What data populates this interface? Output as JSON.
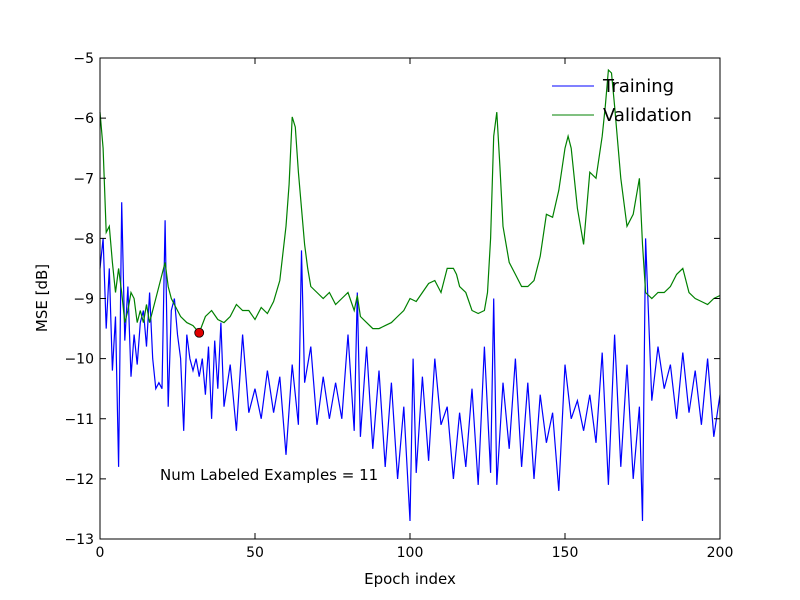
{
  "chart_data": {
    "type": "line",
    "title": "",
    "xlabel": "Epoch index",
    "ylabel": "MSE [dB]",
    "xlim": [
      0,
      200
    ],
    "ylim": [
      -13,
      -5
    ],
    "xticks": [
      "0",
      "50",
      "100",
      "150",
      "200"
    ],
    "yticks": [
      "−5",
      "−6",
      "−7",
      "−8",
      "−9",
      "−10",
      "−11",
      "−12",
      "−13"
    ],
    "grid": false,
    "legend_position": "top-right",
    "annotation": "Num Labeled Examples = 11",
    "marker": {
      "x": 32,
      "y": -9.57,
      "color": "#e00000"
    },
    "series": [
      {
        "name": "Training",
        "color": "#0000ff",
        "x": [
          0,
          1,
          2,
          3,
          4,
          5,
          6,
          7,
          8,
          9,
          10,
          11,
          12,
          13,
          14,
          15,
          16,
          17,
          18,
          19,
          20,
          21,
          22,
          23,
          24,
          25,
          26,
          27,
          28,
          29,
          30,
          31,
          32,
          33,
          34,
          35,
          36,
          37,
          38,
          39,
          40,
          42,
          44,
          46,
          48,
          50,
          52,
          54,
          56,
          58,
          60,
          62,
          64,
          65,
          66,
          68,
          70,
          72,
          74,
          76,
          78,
          80,
          82,
          83,
          84,
          86,
          88,
          90,
          92,
          94,
          96,
          98,
          100,
          101,
          102,
          104,
          106,
          108,
          110,
          112,
          114,
          116,
          118,
          120,
          122,
          124,
          126,
          127,
          128,
          130,
          132,
          134,
          136,
          138,
          140,
          142,
          144,
          146,
          148,
          150,
          152,
          154,
          156,
          158,
          160,
          162,
          164,
          166,
          168,
          170,
          172,
          174,
          175,
          176,
          178,
          180,
          182,
          184,
          186,
          188,
          190,
          192,
          194,
          196,
          198,
          200
        ],
        "values": [
          -8.5,
          -8.0,
          -9.5,
          -8.5,
          -10.2,
          -9.3,
          -11.8,
          -7.4,
          -9.7,
          -8.8,
          -10.3,
          -9.6,
          -10.1,
          -9.4,
          -9.2,
          -9.8,
          -8.9,
          -10.0,
          -10.5,
          -10.4,
          -10.5,
          -7.7,
          -10.8,
          -9.2,
          -9.0,
          -9.6,
          -10.0,
          -11.2,
          -9.6,
          -10.0,
          -10.2,
          -10.0,
          -10.3,
          -10.0,
          -10.6,
          -9.8,
          -11.0,
          -9.7,
          -10.5,
          -9.4,
          -10.8,
          -10.1,
          -11.2,
          -9.6,
          -10.9,
          -10.5,
          -11.0,
          -10.2,
          -10.9,
          -10.3,
          -11.6,
          -10.1,
          -11.1,
          -8.2,
          -10.4,
          -9.8,
          -11.1,
          -10.3,
          -11.0,
          -10.4,
          -11.0,
          -9.6,
          -11.2,
          -8.9,
          -11.3,
          -9.8,
          -11.5,
          -10.2,
          -11.8,
          -10.4,
          -12.0,
          -10.8,
          -12.7,
          -10.0,
          -11.9,
          -10.3,
          -11.7,
          -10.0,
          -11.1,
          -10.8,
          -12.0,
          -10.9,
          -11.8,
          -10.5,
          -12.1,
          -9.8,
          -11.9,
          -9.0,
          -12.1,
          -10.4,
          -11.5,
          -10.0,
          -11.8,
          -10.4,
          -12.0,
          -10.6,
          -11.4,
          -10.9,
          -12.2,
          -10.1,
          -11.0,
          -10.7,
          -11.2,
          -10.6,
          -11.4,
          -9.9,
          -12.1,
          -9.6,
          -11.8,
          -10.1,
          -12.0,
          -10.8,
          -12.7,
          -8.0,
          -10.7,
          -9.8,
          -10.5,
          -10.1,
          -11.0,
          -9.9,
          -10.9,
          -10.2,
          -11.1,
          -10.0,
          -11.3,
          -10.6
        ]
      },
      {
        "name": "Validation",
        "color": "#008000",
        "x": [
          0,
          1,
          2,
          3,
          4,
          5,
          6,
          7,
          8,
          9,
          10,
          11,
          12,
          13,
          14,
          15,
          16,
          17,
          18,
          19,
          20,
          21,
          22,
          23,
          24,
          25,
          26,
          28,
          30,
          32,
          34,
          36,
          38,
          40,
          42,
          44,
          46,
          48,
          50,
          52,
          54,
          56,
          58,
          60,
          61,
          62,
          63,
          64,
          65,
          66,
          67,
          68,
          70,
          72,
          74,
          76,
          78,
          80,
          82,
          83,
          84,
          86,
          88,
          90,
          92,
          94,
          96,
          98,
          100,
          102,
          104,
          106,
          108,
          110,
          112,
          114,
          115,
          116,
          118,
          120,
          122,
          124,
          125,
          126,
          127,
          128,
          129,
          130,
          132,
          134,
          136,
          138,
          140,
          142,
          144,
          146,
          148,
          150,
          151,
          152,
          154,
          156,
          158,
          160,
          162,
          163,
          164,
          165,
          166,
          168,
          170,
          172,
          174,
          175,
          176,
          178,
          180,
          182,
          184,
          186,
          188,
          190,
          192,
          194,
          196,
          198,
          200
        ],
        "values": [
          -5.9,
          -6.5,
          -7.9,
          -7.8,
          -8.4,
          -8.9,
          -8.5,
          -8.9,
          -9.4,
          -9.2,
          -8.9,
          -9.0,
          -9.4,
          -9.2,
          -9.4,
          -9.1,
          -9.4,
          -9.2,
          -9.0,
          -8.8,
          -8.6,
          -8.4,
          -8.8,
          -9.0,
          -9.1,
          -9.2,
          -9.3,
          -9.4,
          -9.45,
          -9.57,
          -9.3,
          -9.2,
          -9.35,
          -9.4,
          -9.3,
          -9.1,
          -9.2,
          -9.2,
          -9.35,
          -9.15,
          -9.25,
          -9.05,
          -8.7,
          -7.8,
          -7.1,
          -5.98,
          -6.15,
          -6.9,
          -7.5,
          -8.1,
          -8.5,
          -8.8,
          -8.9,
          -9.0,
          -8.9,
          -9.1,
          -9.0,
          -8.9,
          -9.2,
          -8.95,
          -9.3,
          -9.4,
          -9.5,
          -9.5,
          -9.45,
          -9.4,
          -9.3,
          -9.2,
          -9.0,
          -9.05,
          -8.9,
          -8.75,
          -8.7,
          -8.9,
          -8.5,
          -8.5,
          -8.6,
          -8.8,
          -8.9,
          -9.2,
          -9.25,
          -9.2,
          -8.9,
          -8.0,
          -6.3,
          -5.9,
          -6.8,
          -7.8,
          -8.4,
          -8.6,
          -8.8,
          -8.8,
          -8.7,
          -8.3,
          -7.6,
          -7.65,
          -7.2,
          -6.5,
          -6.3,
          -6.5,
          -7.5,
          -8.1,
          -6.9,
          -7.0,
          -6.3,
          -5.8,
          -5.2,
          -5.25,
          -5.8,
          -7.0,
          -7.8,
          -7.6,
          -7.0,
          -8.1,
          -8.9,
          -9.0,
          -8.9,
          -8.9,
          -8.8,
          -8.6,
          -8.5,
          -8.9,
          -9.0,
          -9.05,
          -9.1,
          -9.0,
          -8.95
        ]
      }
    ]
  }
}
